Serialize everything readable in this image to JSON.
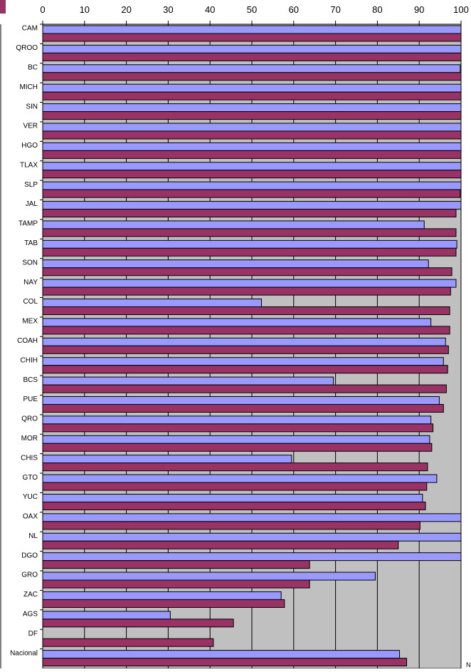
{
  "chart_data": {
    "type": "bar",
    "orientation": "horizontal",
    "xlim": [
      0,
      100
    ],
    "ticks": [
      0,
      10,
      20,
      30,
      40,
      50,
      60,
      70,
      80,
      90,
      100
    ],
    "tick_labels": [
      "0",
      "10",
      "20",
      "30",
      "40",
      "50",
      "60",
      "70",
      "80",
      "90",
      "100"
    ],
    "grid": true,
    "categories": [
      "CAM",
      "QROO",
      "BC",
      "MICH",
      "SIN",
      "VER",
      "HGO",
      "TLAX",
      "SLP",
      "JAL",
      "TAMP",
      "TAB",
      "SON",
      "NAY",
      "COL",
      "MEX",
      "COAH",
      "CHIH",
      "BCS",
      "PUE",
      "QRO",
      "MOR",
      "CHIS",
      "GTO",
      "YUC",
      "OAX",
      "NL",
      "DGO",
      "GRO",
      "ZAC",
      "AGS",
      "DF",
      "Nacional"
    ],
    "series": [
      {
        "color": "#9999ff",
        "values": [
          100,
          100,
          99.8,
          100,
          100,
          100,
          100,
          100,
          100,
          100,
          91.2,
          99,
          92.2,
          98.8,
          52.3,
          92.8,
          96.3,
          95.8,
          69.5,
          94.8,
          92.8,
          92.5,
          59.5,
          94.2,
          90.8,
          100,
          100,
          100,
          79.5,
          57,
          30.5,
          0,
          85.3
        ]
      },
      {
        "color": "#993366",
        "values": [
          100,
          100,
          100,
          100,
          100,
          100,
          100,
          100,
          99.8,
          98.8,
          98.8,
          98.8,
          97.8,
          97.5,
          97.3,
          97.3,
          97,
          96.8,
          96.5,
          95.8,
          93.3,
          93,
          92,
          91.8,
          91.5,
          90.2,
          85,
          63.8,
          63.8,
          57.8,
          45.6,
          40.8,
          87
        ]
      }
    ],
    "edge_label": "N"
  }
}
